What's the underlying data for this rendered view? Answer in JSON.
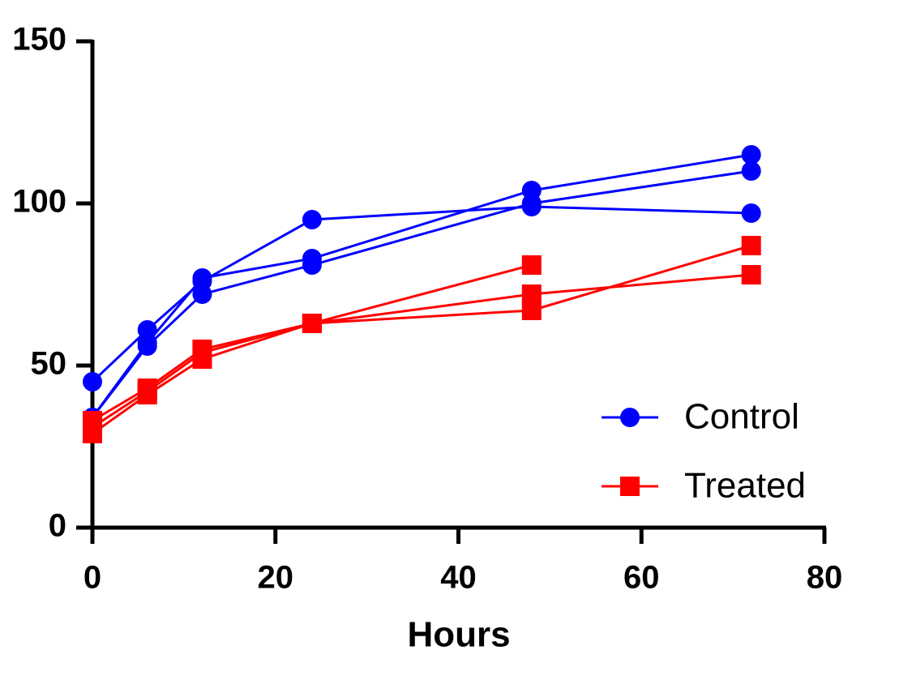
{
  "chart_data": {
    "type": "line",
    "x_label": "Hours",
    "x": [
      0,
      6,
      12,
      24,
      48,
      72
    ],
    "xlim": [
      0,
      80
    ],
    "xticks": [
      0,
      20,
      40,
      60,
      80
    ],
    "ylim": [
      0,
      150
    ],
    "yticks": [
      0,
      50,
      100,
      150
    ],
    "legend": "lower right",
    "series": [
      {
        "name": "Control",
        "color": "#0000ff",
        "marker": "circle",
        "replicates": [
          [
            45,
            61,
            76,
            95,
            99,
            97
          ],
          [
            34,
            57,
            77,
            83,
            104,
            115
          ],
          [
            34,
            56,
            72,
            81,
            100,
            110
          ]
        ]
      },
      {
        "name": "Treated",
        "color": "#ff0000",
        "marker": "square",
        "replicates": [
          [
            33,
            43,
            55,
            63,
            81,
            null
          ],
          [
            29,
            41,
            52,
            63,
            67,
            87
          ],
          [
            31,
            42,
            54,
            63,
            72,
            78
          ]
        ]
      }
    ]
  }
}
